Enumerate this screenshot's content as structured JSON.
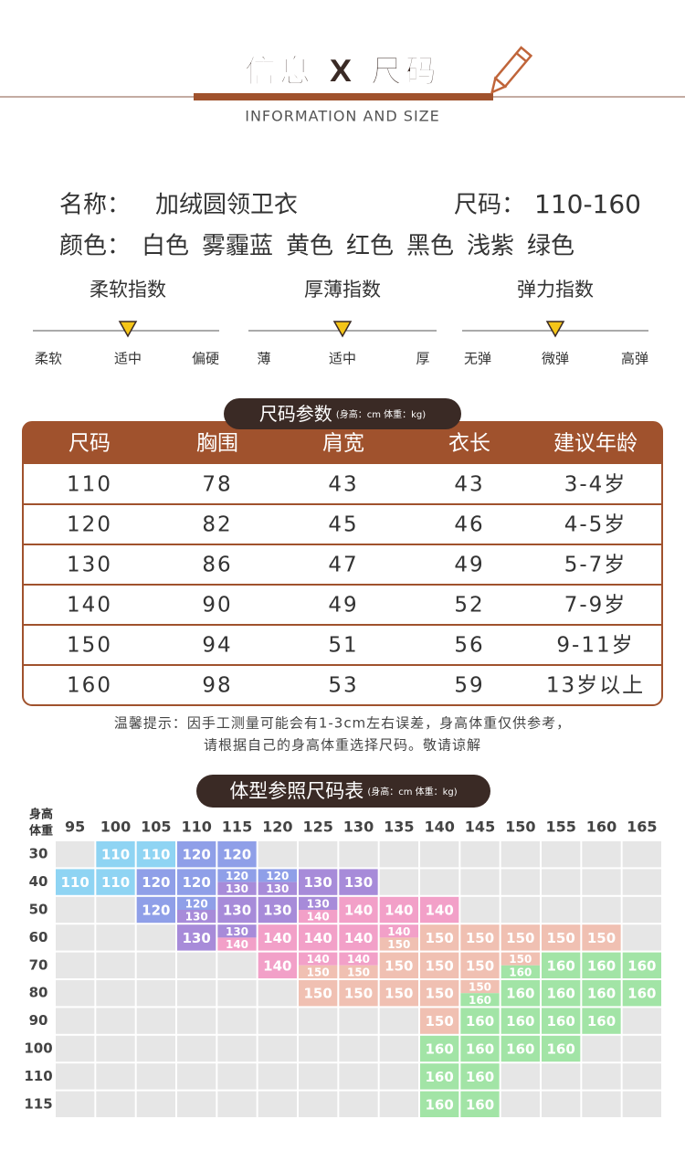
{
  "header": {
    "title": "信息 X 尺码",
    "subtitle": "INFORMATION AND SIZE"
  },
  "info": {
    "name_label": "名称：",
    "name": "加绒圆领卫衣",
    "size_label": "尺码：",
    "size": "110-160",
    "color_label": "颜色：",
    "colors": [
      "白色",
      "雾霾蓝",
      "黄色",
      "红色",
      "黑色",
      "浅紫",
      "绿色"
    ]
  },
  "indices": [
    {
      "title": "柔软指数",
      "labels": [
        "柔软",
        "适中",
        "偏硬"
      ]
    },
    {
      "title": "厚薄指数",
      "labels": [
        "薄",
        "适中",
        "厚"
      ]
    },
    {
      "title": "弹力指数",
      "labels": [
        "无弹",
        "微弹",
        "高弹"
      ]
    }
  ],
  "table": {
    "title": "尺码参数",
    "note": "(身高：cm 体重：kg)",
    "header": [
      "尺码",
      "胸围",
      "肩宽",
      "衣长",
      "建议年龄"
    ],
    "rows": [
      [
        "110",
        "78",
        "43",
        "43",
        "3-4岁"
      ],
      [
        "120",
        "82",
        "45",
        "46",
        "4-5岁"
      ],
      [
        "130",
        "86",
        "47",
        "49",
        "5-7岁"
      ],
      [
        "140",
        "90",
        "49",
        "52",
        "7-9岁"
      ],
      [
        "150",
        "94",
        "51",
        "56",
        "9-11岁"
      ],
      [
        "160",
        "98",
        "53",
        "59",
        "13岁以上"
      ]
    ]
  },
  "tip": [
    "温馨提示：因手工测量可能会有1-3cm左右误差，身高体重仅供参考，",
    "请根据自己的身高体重选择尺码。敬请谅解"
  ],
  "chart": {
    "title": "体型参照尺码表",
    "note": "(身高：cm 体重：kg)",
    "height_label": "身高",
    "weight_label": "体重",
    "heights": [
      "95",
      "100",
      "105",
      "110",
      "115",
      "120",
      "125",
      "130",
      "135",
      "140",
      "145",
      "150",
      "155",
      "160",
      "165"
    ],
    "weights": [
      "30",
      "40",
      "50",
      "60",
      "70",
      "80",
      "90",
      "100",
      "110",
      "115"
    ],
    "colors": {
      "110": "#8fd4f3",
      "120": "#8f9fe8",
      "130": "#a78bd9",
      "140": "#f2a0c8",
      "150": "#f0c0b2",
      "160": "#a2e4a6"
    },
    "cells": [
      [
        null,
        [
          "110"
        ],
        [
          "110"
        ],
        [
          "120"
        ],
        [
          "120"
        ],
        null,
        null,
        null,
        null,
        null,
        null,
        null,
        null,
        null,
        null
      ],
      [
        [
          "110"
        ],
        [
          "110"
        ],
        [
          "120"
        ],
        [
          "120"
        ],
        [
          "120",
          "130"
        ],
        [
          "120",
          "130"
        ],
        [
          "130"
        ],
        [
          "130"
        ],
        null,
        null,
        null,
        null,
        null,
        null,
        null
      ],
      [
        null,
        null,
        [
          "120"
        ],
        [
          "120",
          "130"
        ],
        [
          "130"
        ],
        [
          "130"
        ],
        [
          "130",
          "140"
        ],
        [
          "140"
        ],
        [
          "140"
        ],
        [
          "140"
        ],
        null,
        null,
        null,
        null,
        null
      ],
      [
        null,
        null,
        null,
        [
          "130"
        ],
        [
          "130",
          "140"
        ],
        [
          "140"
        ],
        [
          "140"
        ],
        [
          "140"
        ],
        [
          "140",
          "150"
        ],
        [
          "150"
        ],
        [
          "150"
        ],
        [
          "150"
        ],
        [
          "150"
        ],
        [
          "150"
        ],
        null
      ],
      [
        null,
        null,
        null,
        null,
        null,
        [
          "140"
        ],
        [
          "140",
          "150"
        ],
        [
          "140",
          "150"
        ],
        [
          "150"
        ],
        [
          "150"
        ],
        [
          "150"
        ],
        [
          "150",
          "160"
        ],
        [
          "160"
        ],
        [
          "160"
        ],
        [
          "160"
        ]
      ],
      [
        null,
        null,
        null,
        null,
        null,
        null,
        [
          "150"
        ],
        [
          "150"
        ],
        [
          "150"
        ],
        [
          "150"
        ],
        [
          "150",
          "160"
        ],
        [
          "160"
        ],
        [
          "160"
        ],
        [
          "160"
        ],
        [
          "160"
        ]
      ],
      [
        null,
        null,
        null,
        null,
        null,
        null,
        null,
        null,
        null,
        [
          "150"
        ],
        [
          "160"
        ],
        [
          "160"
        ],
        [
          "160"
        ],
        [
          "160"
        ],
        null
      ],
      [
        null,
        null,
        null,
        null,
        null,
        null,
        null,
        null,
        null,
        [
          "160"
        ],
        [
          "160"
        ],
        [
          "160"
        ],
        [
          "160"
        ],
        null,
        null
      ],
      [
        null,
        null,
        null,
        null,
        null,
        null,
        null,
        null,
        null,
        [
          "160"
        ],
        [
          "160"
        ],
        null,
        null,
        null,
        null
      ],
      [
        null,
        null,
        null,
        null,
        null,
        null,
        null,
        null,
        null,
        [
          "160"
        ],
        [
          "160"
        ],
        null,
        null,
        null,
        null
      ]
    ]
  }
}
